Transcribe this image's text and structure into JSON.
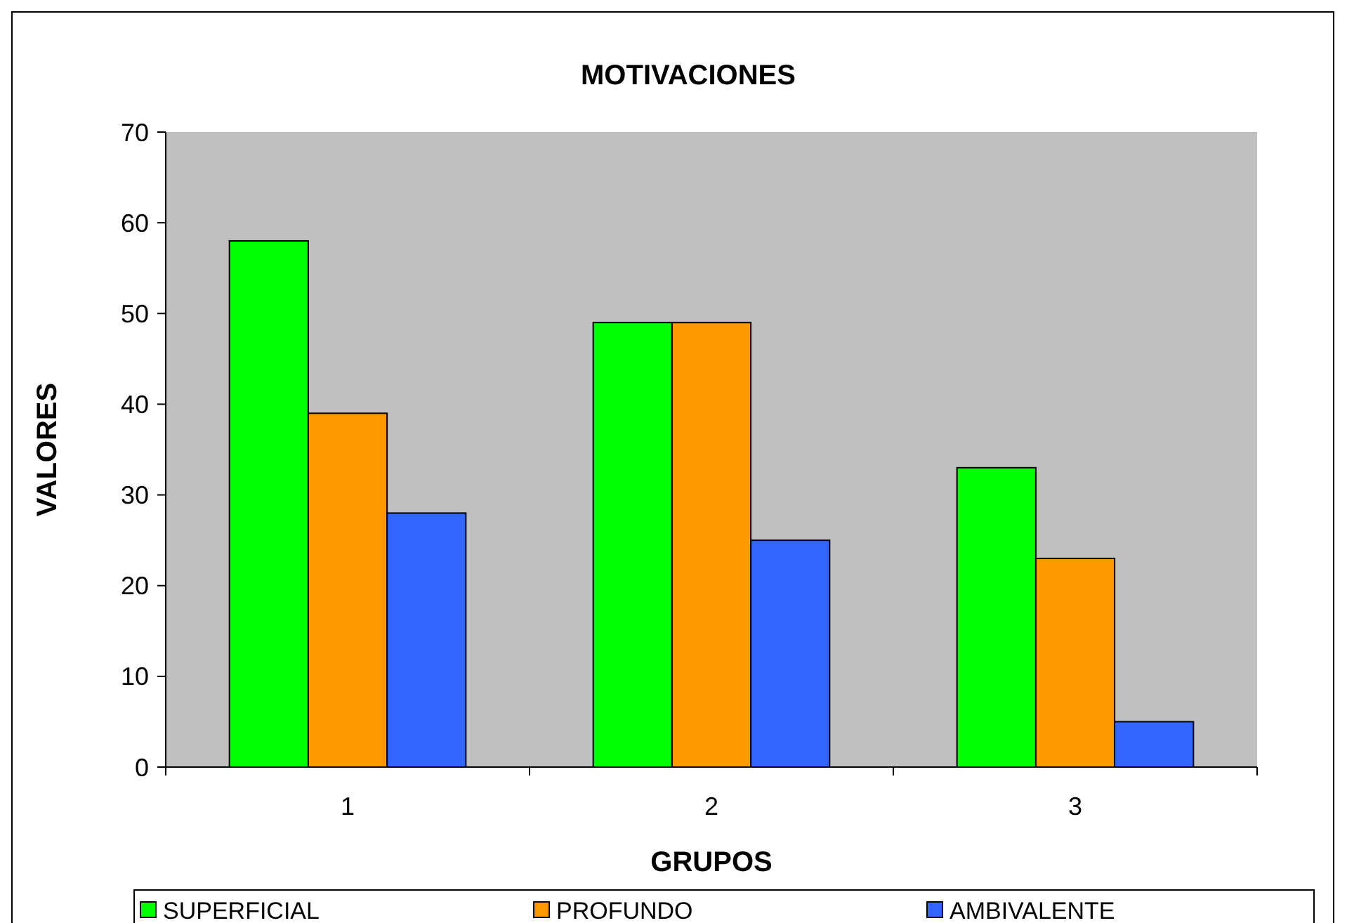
{
  "chart_data": {
    "type": "bar",
    "title": "MOTIVACIONES",
    "xlabel": "GRUPOS",
    "ylabel": "VALORES",
    "categories": [
      "1",
      "2",
      "3"
    ],
    "series": [
      {
        "name": "SUPERFICIAL",
        "color": "#00ff00",
        "values": [
          58,
          49,
          33
        ]
      },
      {
        "name": "PROFUNDO",
        "color": "#ff9900",
        "values": [
          39,
          49,
          23
        ]
      },
      {
        "name": "AMBIVALENTE",
        "color": "#3366ff",
        "values": [
          28,
          25,
          5
        ]
      }
    ],
    "ylim": [
      0,
      70
    ],
    "yticks": [
      0,
      10,
      20,
      30,
      40,
      50,
      60,
      70
    ],
    "grid": false,
    "legend": "bottom"
  }
}
